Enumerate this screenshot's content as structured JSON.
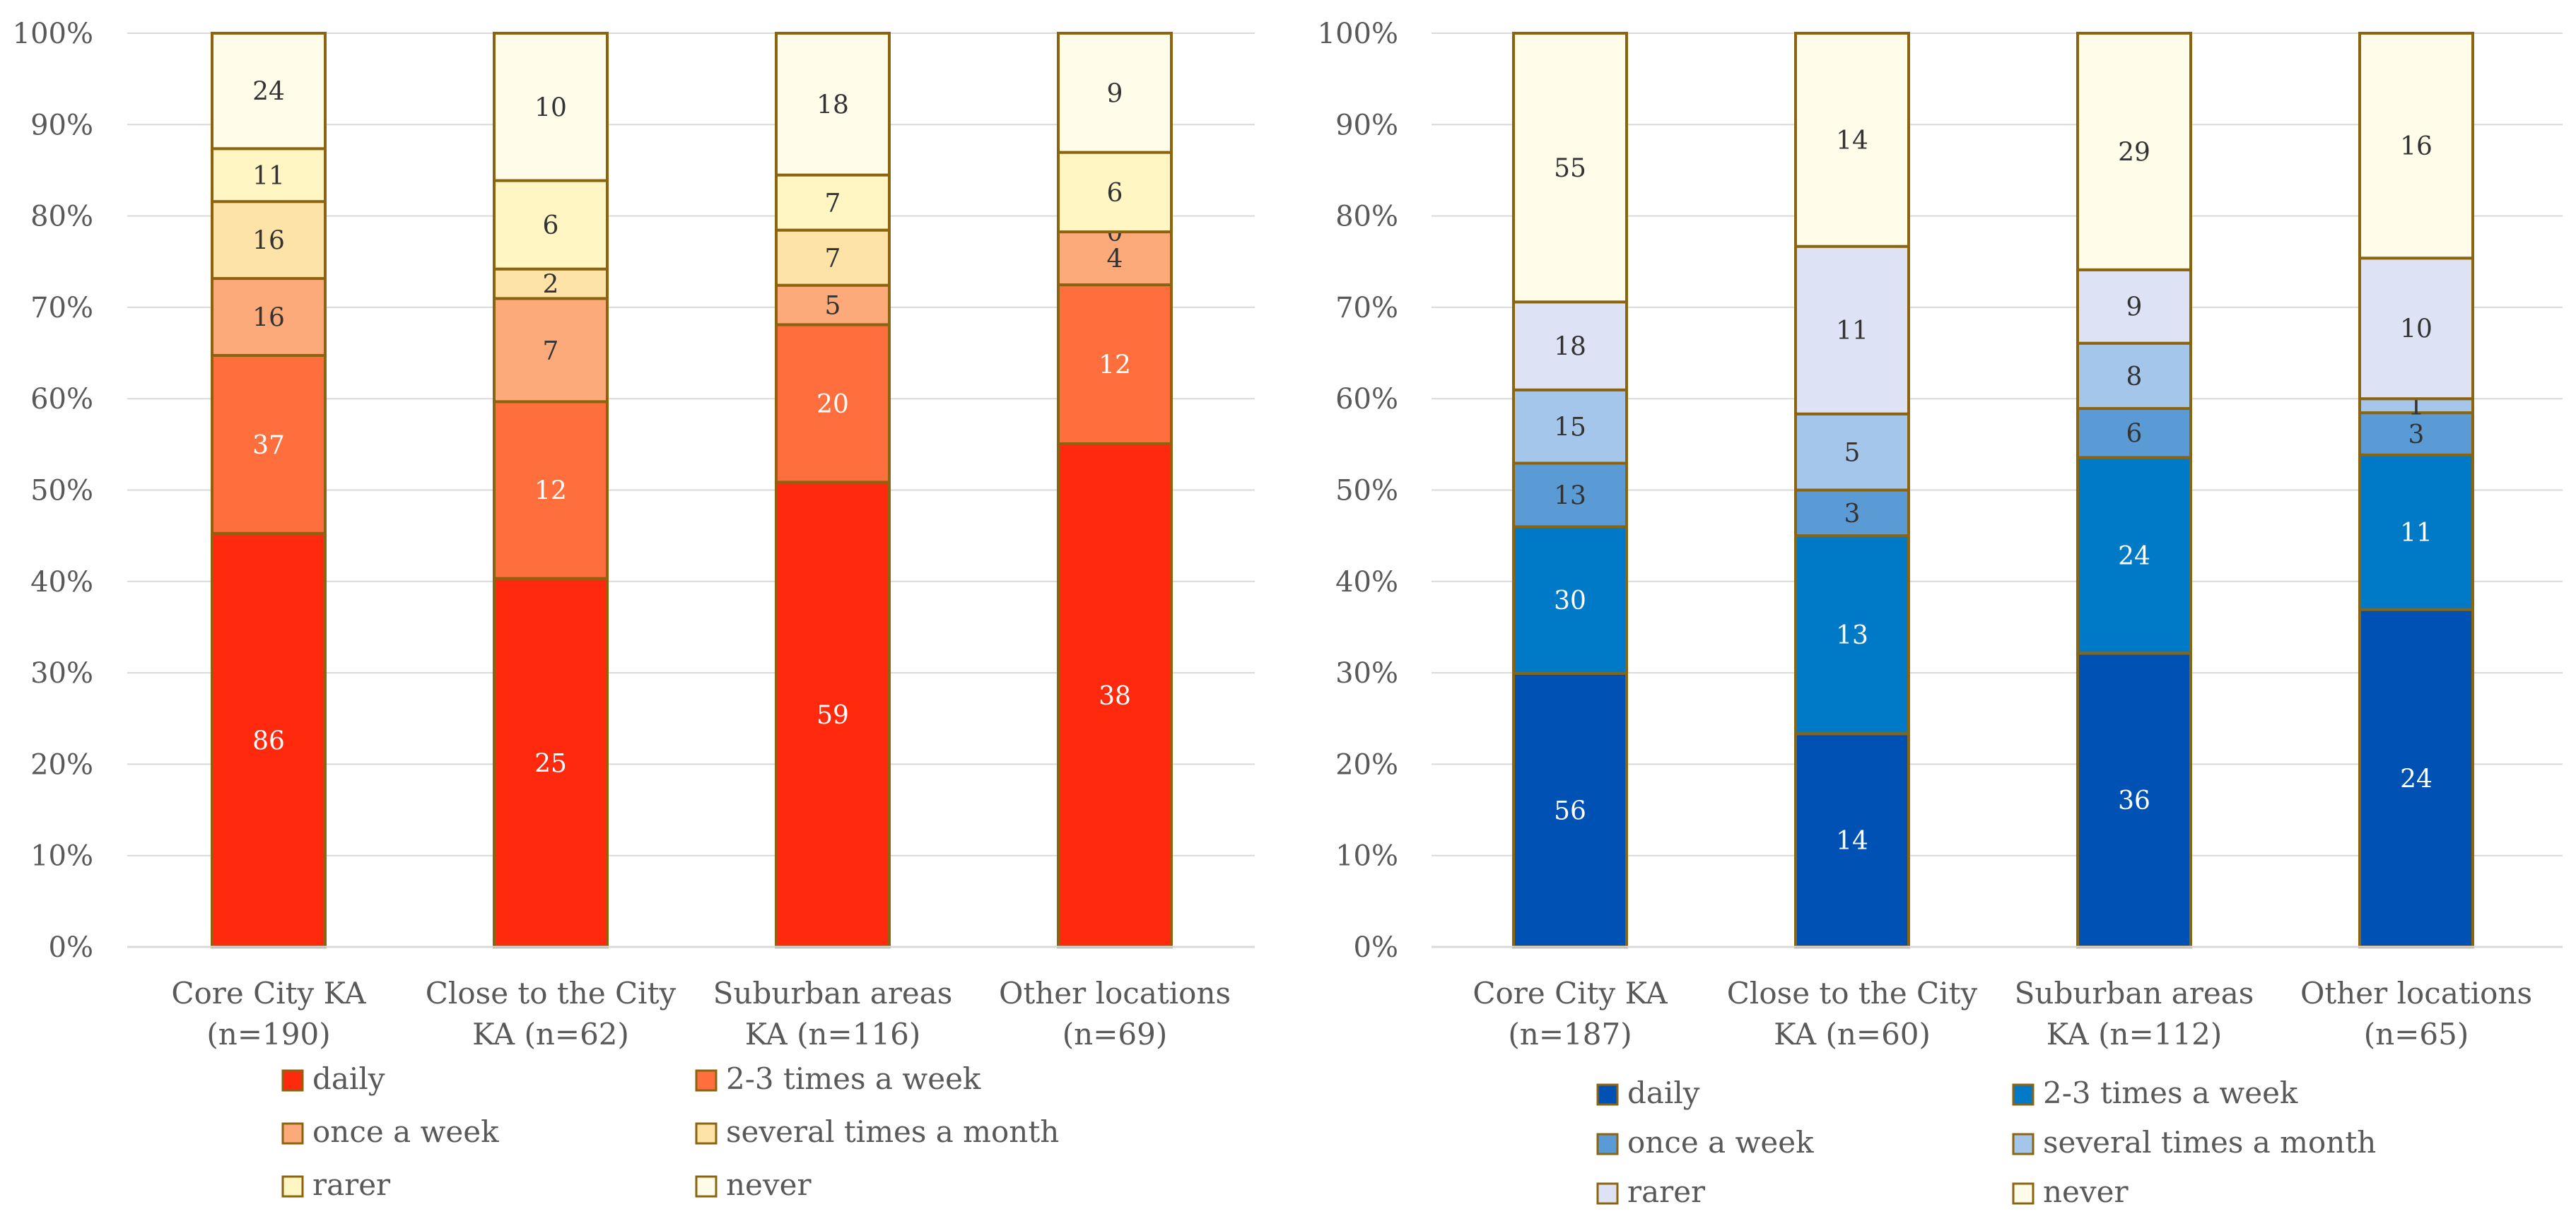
{
  "chart_data": [
    {
      "type": "bar",
      "stacked": true,
      "normalized": true,
      "title": "",
      "xlabel": "",
      "ylabel": "",
      "ylim": [
        0,
        100
      ],
      "y_ticks": [
        "0%",
        "10%",
        "20%",
        "30%",
        "40%",
        "50%",
        "60%",
        "70%",
        "80%",
        "90%",
        "100%"
      ],
      "categories": [
        [
          "Core City KA",
          "(n=190)"
        ],
        [
          "Close to the City",
          "KA (n=62)"
        ],
        [
          "Suburban areas",
          "KA (n=116)"
        ],
        [
          "Other locations",
          "(n=69)"
        ]
      ],
      "series": [
        {
          "name": "daily",
          "color": "#FF2A0E",
          "label_color": "#ffffff",
          "values": [
            86,
            25,
            59,
            38
          ]
        },
        {
          "name": "2-3 times a week",
          "color": "#FF6F3E",
          "label_color": "#ffffff",
          "values": [
            37,
            12,
            20,
            12
          ]
        },
        {
          "name": "once a week",
          "color": "#FDAA7A",
          "label_color": "#333333",
          "values": [
            16,
            7,
            5,
            4
          ]
        },
        {
          "name": "several times a month",
          "color": "#FEE3A8",
          "label_color": "#333333",
          "values": [
            16,
            2,
            7,
            0
          ]
        },
        {
          "name": "rarer",
          "color": "#FFF6C4",
          "label_color": "#333333",
          "values": [
            11,
            6,
            7,
            6
          ]
        },
        {
          "name": "never",
          "color": "#FFFDEA",
          "label_color": "#333333",
          "values": [
            24,
            10,
            18,
            9
          ]
        }
      ],
      "legend_position": "bottom"
    },
    {
      "type": "bar",
      "stacked": true,
      "normalized": true,
      "title": "",
      "xlabel": "",
      "ylabel": "",
      "ylim": [
        0,
        100
      ],
      "y_ticks": [
        "0%",
        "10%",
        "20%",
        "30%",
        "40%",
        "50%",
        "60%",
        "70%",
        "80%",
        "90%",
        "100%"
      ],
      "categories": [
        [
          "Core City KA",
          "(n=187)"
        ],
        [
          "Close to the City",
          "KA (n=60)"
        ],
        [
          "Suburban areas",
          "KA (n=112)"
        ],
        [
          "Other locations",
          "(n=65)"
        ]
      ],
      "series": [
        {
          "name": "daily",
          "color": "#0051B4",
          "label_color": "#ffffff",
          "values": [
            56,
            14,
            36,
            24
          ]
        },
        {
          "name": "2-3 times a week",
          "color": "#0079C6",
          "label_color": "#ffffff",
          "values": [
            30,
            13,
            24,
            11
          ]
        },
        {
          "name": "once a week",
          "color": "#5B9BD5",
          "label_color": "#333333",
          "values": [
            13,
            3,
            6,
            3
          ]
        },
        {
          "name": "several times a month",
          "color": "#A4C6EB",
          "label_color": "#333333",
          "values": [
            15,
            5,
            8,
            1
          ]
        },
        {
          "name": "rarer",
          "color": "#DDE3F4",
          "label_color": "#333333",
          "values": [
            18,
            11,
            9,
            10
          ]
        },
        {
          "name": "never",
          "color": "#FFFDEA",
          "label_color": "#333333",
          "values": [
            55,
            14,
            29,
            16
          ]
        }
      ],
      "legend_position": "bottom"
    }
  ]
}
